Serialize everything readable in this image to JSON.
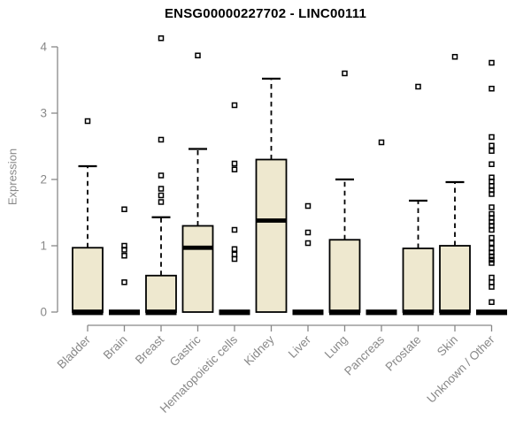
{
  "title": "ENSG00000227702 - LINC00111",
  "chart_data": {
    "type": "boxplot",
    "title": "ENSG00000227702 - LINC00111",
    "xlabel": "",
    "ylabel": "Expression",
    "ylim": [
      0,
      4
    ],
    "y_ticks": [
      "0",
      "1",
      "2",
      "3",
      "4"
    ],
    "grid": false,
    "legend": null,
    "categories": [
      "Bladder",
      "Brain",
      "Breast",
      "Gastric",
      "Hematopoietic cells",
      "Kidney",
      "Liver",
      "Lung",
      "Pancreas",
      "Prostate",
      "Skin",
      "Unknown / Other"
    ],
    "boxes": [
      {
        "category": "Bladder",
        "low": 0,
        "q1": 0,
        "median": 0,
        "q3": 0.97,
        "high": 2.2,
        "outliers": [
          2.88
        ]
      },
      {
        "category": "Brain",
        "low": 0,
        "q1": 0,
        "median": 0,
        "q3": 0,
        "high": 0,
        "outliers": [
          1.55,
          1.0,
          0.94,
          0.85,
          0.45
        ]
      },
      {
        "category": "Breast",
        "low": 0,
        "q1": 0,
        "median": 0,
        "q3": 0.55,
        "high": 1.43,
        "outliers": [
          4.13,
          2.6,
          2.06,
          1.86,
          1.76,
          1.66
        ]
      },
      {
        "category": "Gastric",
        "low": 0,
        "q1": 0,
        "median": 0.97,
        "q3": 1.3,
        "high": 2.46,
        "outliers": [
          3.87
        ]
      },
      {
        "category": "Hematopoietic cells",
        "low": 0,
        "q1": 0,
        "median": 0,
        "q3": 0,
        "high": 0,
        "outliers": [
          3.12,
          2.24,
          2.15,
          1.24,
          0.95,
          0.87,
          0.8
        ]
      },
      {
        "category": "Kidney",
        "low": 0,
        "q1": 0,
        "median": 1.38,
        "q3": 2.3,
        "high": 3.52,
        "outliers": []
      },
      {
        "category": "Liver",
        "low": 0,
        "q1": 0,
        "median": 0,
        "q3": 0,
        "high": 0,
        "outliers": [
          1.6,
          1.2,
          1.04
        ]
      },
      {
        "category": "Lung",
        "low": 0,
        "q1": 0,
        "median": 0,
        "q3": 1.09,
        "high": 2.0,
        "outliers": [
          3.6
        ]
      },
      {
        "category": "Pancreas",
        "low": 0,
        "q1": 0,
        "median": 0,
        "q3": 0,
        "high": 0,
        "outliers": [
          2.56
        ]
      },
      {
        "category": "Prostate",
        "low": 0,
        "q1": 0,
        "median": 0,
        "q3": 0.96,
        "high": 1.68,
        "outliers": [
          3.4
        ]
      },
      {
        "category": "Skin",
        "low": 0,
        "q1": 0,
        "median": 0,
        "q3": 1.0,
        "high": 1.96,
        "outliers": [
          3.85
        ]
      },
      {
        "category": "Unknown / Other",
        "low": 0,
        "q1": 0,
        "median": 0,
        "q3": 0,
        "high": 0,
        "outliers": [
          3.76,
          3.37,
          2.64,
          2.51,
          2.43,
          2.23,
          2.03,
          1.97,
          1.9,
          1.84,
          1.78,
          1.58,
          1.48,
          1.42,
          1.36,
          1.3,
          1.24,
          1.12,
          1.04,
          0.96,
          0.9,
          0.84,
          0.79,
          0.74,
          0.52,
          0.45,
          0.38,
          0.15
        ]
      }
    ],
    "colors": {
      "box_fill": "#EEE8CF",
      "box_stroke": "#000000",
      "median": "#000000",
      "outlier_stroke": "#000000",
      "axis": "#888888",
      "title_color": "#000000"
    }
  }
}
